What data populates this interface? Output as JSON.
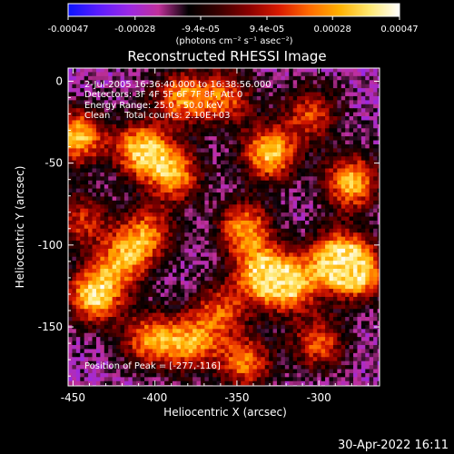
{
  "colorbar": {
    "tick_labels": [
      "-0.00047",
      "-0.00028",
      "-9.4e-05",
      "9.4e-05",
      "0.00028",
      "0.00047"
    ],
    "tick_values": [
      -0.00047,
      -0.00028,
      -9.4e-05,
      9.4e-05,
      0.00028,
      0.00047
    ],
    "range": [
      -0.00047,
      0.00047
    ],
    "units_label": "(photons cm⁻² s⁻¹ asec⁻²)",
    "colormap": [
      "#0a14ff",
      "#5a1cff",
      "#9a28e6",
      "#c0309a",
      "#000000",
      "#3a0000",
      "#8a0000",
      "#d81a00",
      "#ff6a00",
      "#ffb000",
      "#ffe870",
      "#ffffff"
    ]
  },
  "chart_data": {
    "type": "heatmap",
    "title": "Reconstructed RHESSI Image",
    "xlabel": "Heliocentric X (arcsec)",
    "ylabel": "Heliocentric Y (arcsec)",
    "xlim": [
      -453,
      -263
    ],
    "ylim": [
      -186,
      8
    ],
    "x_ticks": [
      -450,
      -400,
      -350,
      -300
    ],
    "y_ticks": [
      0,
      -50,
      -100,
      -150
    ],
    "x_tick_labels": [
      "-450",
      "-400",
      "-350",
      "-300"
    ],
    "y_tick_labels": [
      "0",
      "-50",
      "-100",
      "-150"
    ],
    "annotations": [
      "2-Jul-2005 16:36:40.000 to 16:38:56.000",
      "Detectors: 3F 4F 5F 6F 7F 8F, Att 0",
      "Energy Range: 25.0 - 50.0 keV",
      "Clean     Total counts: 2.10E+03"
    ],
    "peak_label": "Position of Peak = [-277,-116]",
    "peak": [
      -277,
      -116
    ],
    "bright_sources": [
      {
        "x": -437,
        "y": -131,
        "v": 1.0
      },
      {
        "x": -447,
        "y": -34,
        "v": 0.9
      },
      {
        "x": -408,
        "y": -42,
        "v": 0.95
      },
      {
        "x": -388,
        "y": -57,
        "v": 0.8
      },
      {
        "x": -384,
        "y": -10,
        "v": 0.75
      },
      {
        "x": -330,
        "y": -44,
        "v": 0.95
      },
      {
        "x": -280,
        "y": -62,
        "v": 0.9
      },
      {
        "x": -277,
        "y": -116,
        "v": 1.0
      },
      {
        "x": -290,
        "y": -108,
        "v": 0.85
      },
      {
        "x": -345,
        "y": -90,
        "v": 0.8
      },
      {
        "x": -335,
        "y": -118,
        "v": 0.85
      },
      {
        "x": -318,
        "y": -124,
        "v": 0.9
      },
      {
        "x": -420,
        "y": -110,
        "v": 0.7
      },
      {
        "x": -405,
        "y": -93,
        "v": 0.7
      },
      {
        "x": -378,
        "y": -160,
        "v": 0.75
      },
      {
        "x": -403,
        "y": -158,
        "v": 0.75
      },
      {
        "x": -345,
        "y": -172,
        "v": 0.7
      },
      {
        "x": -300,
        "y": -160,
        "v": 0.65
      },
      {
        "x": -357,
        "y": -10,
        "v": 0.65
      },
      {
        "x": -305,
        "y": -20,
        "v": 0.6
      },
      {
        "x": -445,
        "y": -85,
        "v": 0.55
      },
      {
        "x": -360,
        "y": -140,
        "v": 0.6
      }
    ]
  },
  "footer": {
    "timestamp": "30-Apr-2022 16:11"
  }
}
